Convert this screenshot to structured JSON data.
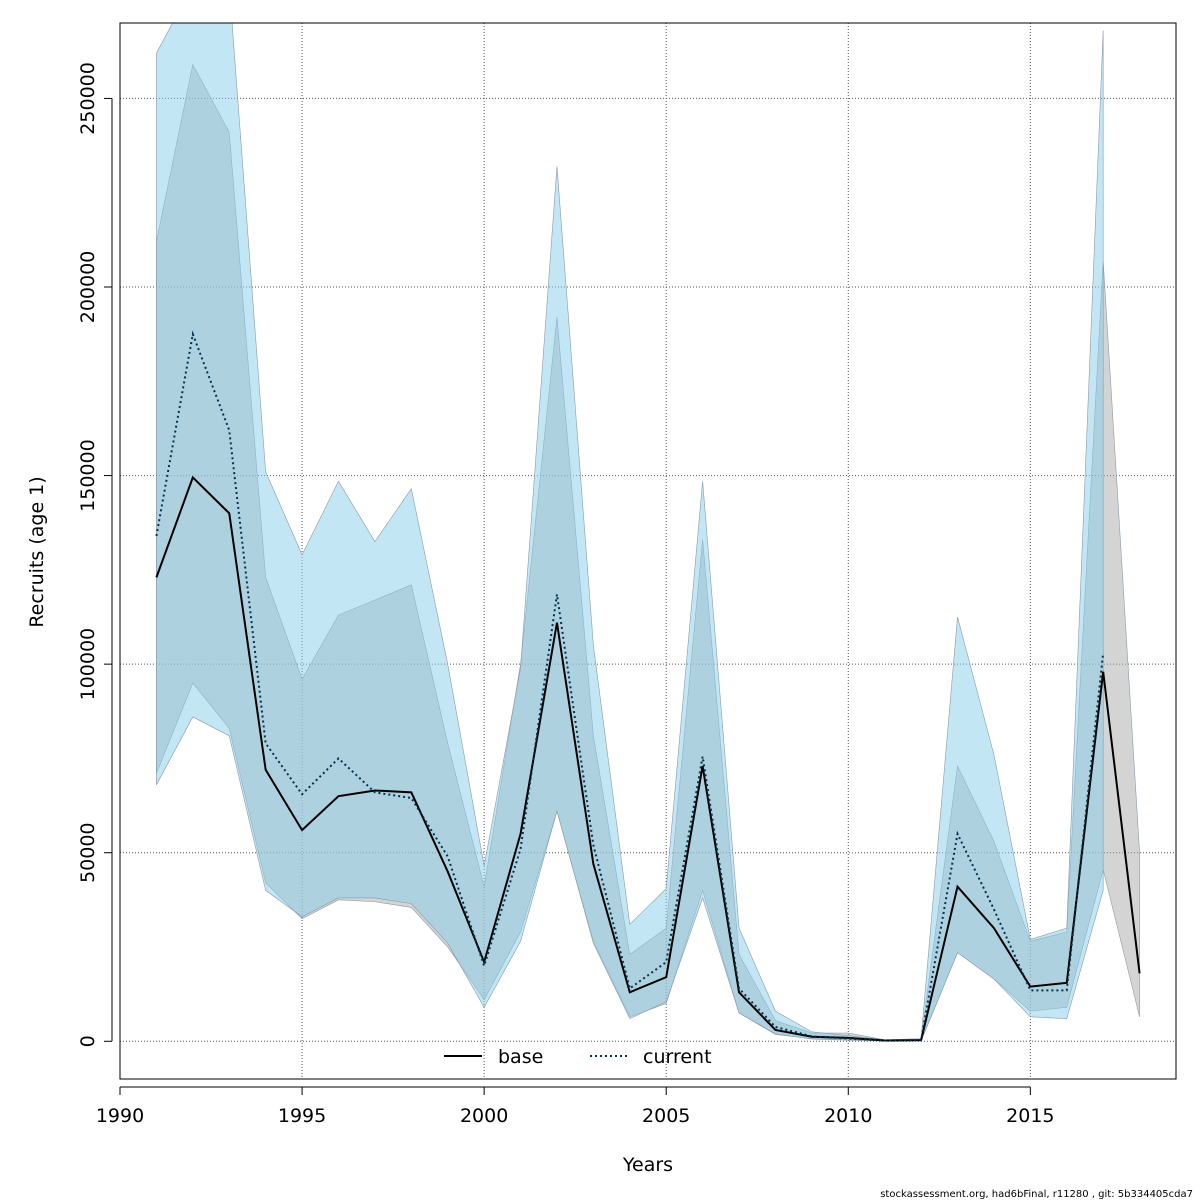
{
  "chart_data": {
    "type": "line",
    "xlabel": "Years",
    "ylabel": "Recruits (age 1)",
    "xlim": [
      1990,
      2019
    ],
    "ylim": [
      -10000,
      270000
    ],
    "x_ticks": [
      1990,
      1995,
      2000,
      2005,
      2010,
      2015
    ],
    "y_ticks": [
      0,
      50000,
      100000,
      150000,
      200000,
      250000
    ],
    "grid": true,
    "legend_position": "bottom-center",
    "series": [
      {
        "name": "base",
        "style": "solid",
        "line_color": "#000000",
        "band_color": "#a9a9a9",
        "x": [
          1991,
          1992,
          1993,
          1994,
          1995,
          1996,
          1997,
          1998,
          1999,
          2000,
          2001,
          2002,
          2003,
          2004,
          2005,
          2006,
          2007,
          2008,
          2009,
          2010,
          2011,
          2012,
          2013,
          2014,
          2015,
          2016,
          2017,
          2018
        ],
        "values": [
          123000,
          149500,
          140000,
          72000,
          56000,
          65000,
          66500,
          66000,
          45000,
          21000,
          55000,
          111000,
          47000,
          13000,
          17000,
          73000,
          13000,
          3000,
          1200,
          900,
          200,
          300,
          41000,
          30000,
          14500,
          15500,
          98000,
          18000
        ],
        "lower": [
          71000,
          95000,
          83000,
          42000,
          32500,
          37500,
          37000,
          35500,
          25000,
          11000,
          29000,
          61000,
          26500,
          6500,
          10000,
          40000,
          7500,
          1800,
          700,
          500,
          100,
          150,
          23500,
          16500,
          8000,
          9000,
          45500,
          6500
        ],
        "upper": [
          212000,
          259000,
          241000,
          123000,
          96000,
          113000,
          117000,
          121000,
          79000,
          41000,
          100000,
          192000,
          81000,
          23000,
          30000,
          133000,
          23000,
          5500,
          2200,
          2200,
          400,
          600,
          73000,
          53000,
          26500,
          29000,
          207000,
          50000
        ]
      },
      {
        "name": "current",
        "style": "dotted",
        "line_color": "#00334d",
        "band_color": "#87ceeb",
        "x": [
          1991,
          1992,
          1993,
          1994,
          1995,
          1996,
          1997,
          1998,
          1999,
          2000,
          2001,
          2002,
          2003,
          2004,
          2005,
          2006,
          2007,
          2008,
          2009,
          2010,
          2011,
          2012,
          2013,
          2014,
          2015,
          2016,
          2017
        ],
        "values": [
          134000,
          187500,
          162000,
          79000,
          65500,
          75000,
          66000,
          64500,
          49000,
          20000,
          51000,
          118500,
          52000,
          14000,
          21000,
          75500,
          14000,
          3800,
          1300,
          700,
          200,
          300,
          55000,
          35000,
          13500,
          13500,
          103000
        ],
        "lower": [
          68000,
          86000,
          81000,
          40000,
          33000,
          38000,
          38000,
          36500,
          26000,
          9000,
          26500,
          61000,
          26000,
          6000,
          10500,
          38000,
          7500,
          2000,
          600,
          300,
          100,
          100,
          23500,
          16500,
          6500,
          6000,
          40000
        ],
        "upper": [
          262000,
          280000,
          280000,
          151000,
          129000,
          148500,
          132500,
          146500,
          100000,
          46500,
          99000,
          232000,
          105000,
          31000,
          40500,
          148500,
          30000,
          8000,
          2500,
          1500,
          400,
          700,
          112500,
          76000,
          27000,
          30000,
          268000
        ]
      }
    ],
    "footer": "stockassessment.org, had6bFinal, r11280 , git: 5b334405cda7"
  }
}
